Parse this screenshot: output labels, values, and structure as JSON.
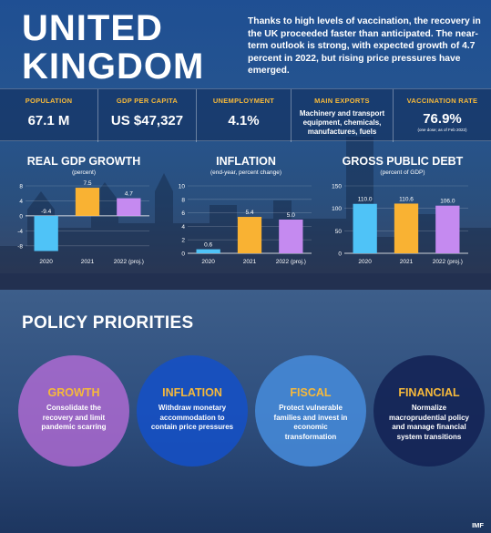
{
  "header": {
    "title_line1": "UNITED",
    "title_line2": "KINGDOM",
    "intro": "Thanks to high levels of vaccination, the recovery in the UK proceeded faster than anticipated. The near-term outlook is strong, with expected growth of 4.7 percent in 2022, but rising price pressures have emerged."
  },
  "stats": [
    {
      "label": "POPULATION",
      "value": "67.1 M"
    },
    {
      "label": "GDP PER CAPITA",
      "value": "US $47,327"
    },
    {
      "label": "UNEMPLOYMENT",
      "value": "4.1%"
    },
    {
      "label": "MAIN EXPORTS",
      "value": "Machinery and transport equipment, chemicals, manufactures, fuels"
    },
    {
      "label": "VACCINATION RATE",
      "value": "76.9%",
      "note": "(one dose; as of Feb 2022)"
    }
  ],
  "colors": {
    "blue": "#4fc3f7",
    "orange": "#f9b233",
    "purple": "#c58af0",
    "accent": "#f6b93b"
  },
  "chart_data": [
    {
      "type": "bar",
      "title": "REAL GDP GROWTH",
      "subtitle": "(percent)",
      "categories": [
        "2020",
        "2021",
        "2022 (proj.)"
      ],
      "values": [
        -9.4,
        7.5,
        4.7
      ],
      "value_labels": [
        "-9.4",
        "7.5",
        "4.7"
      ],
      "yticks": [
        "8",
        "4",
        "0",
        "-4",
        "-8"
      ],
      "ylim": [
        -10,
        8
      ]
    },
    {
      "type": "bar",
      "title": "INFLATION",
      "subtitle": "(end-year, percent change)",
      "categories": [
        "2020",
        "2021",
        "2022 (proj.)"
      ],
      "values": [
        0.6,
        5.4,
        5.0
      ],
      "value_labels": [
        "0.6",
        "5.4",
        "5.0"
      ],
      "yticks": [
        "10",
        "8",
        "6",
        "4",
        "2",
        "0"
      ],
      "ylim": [
        0,
        10
      ]
    },
    {
      "type": "bar",
      "title": "GROSS PUBLIC DEBT",
      "subtitle": "(percent of GDP)",
      "categories": [
        "2020",
        "2021",
        "2022 (proj.)"
      ],
      "values": [
        110.0,
        110.6,
        106.0
      ],
      "value_labels": [
        "110.0",
        "110.6",
        "106.0"
      ],
      "yticks": [
        "150",
        "100",
        "50",
        "0"
      ],
      "ylim": [
        0,
        150
      ]
    }
  ],
  "policy": {
    "title": "POLICY PRIORITIES",
    "items": [
      {
        "heading": "GROWTH",
        "text": "Consolidate the recovery and limit pandemic scarring"
      },
      {
        "heading": "INFLATION",
        "text": "Withdraw monetary accommodation to contain price pressures"
      },
      {
        "heading": "FISCAL",
        "text": "Protect vulnerable families and invest in economic transformation"
      },
      {
        "heading": "FINANCIAL",
        "text": "Normalize macroprudential policy and manage financial system transitions"
      }
    ]
  },
  "footer": {
    "source": "IMF"
  }
}
